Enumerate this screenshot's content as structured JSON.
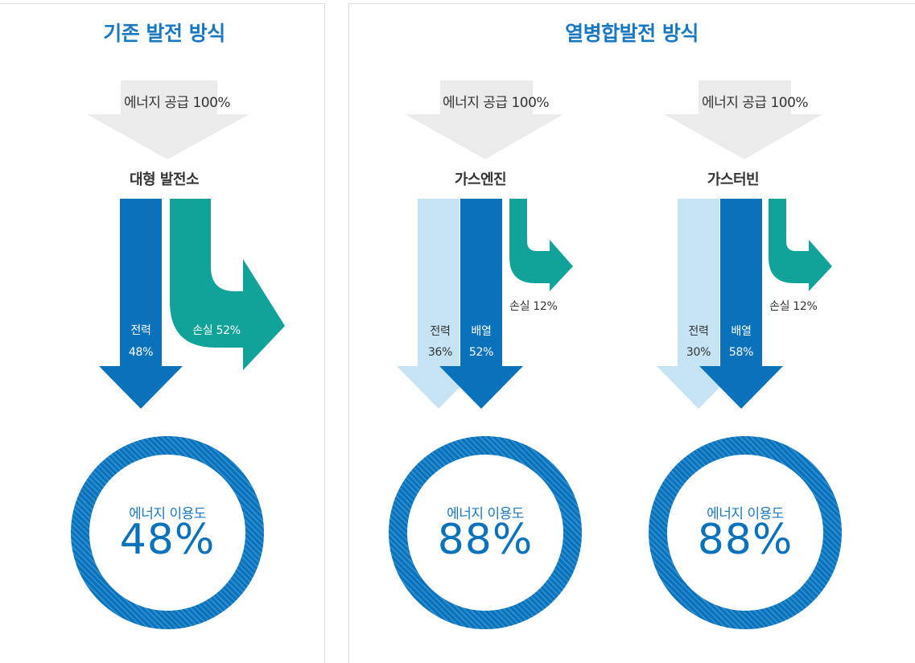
{
  "colors": {
    "title": "#1a78c2",
    "supply_arrow": "#ebebeb",
    "electric_dark": "#0a72bb",
    "electric_light": "#c5e3f3",
    "loss_teal": "#11a39a",
    "ring": "#0a72bb"
  },
  "panels": {
    "conventional": {
      "title": "기존 발전 방식",
      "supply": "에너지 공급 100%",
      "plant": "대형 발전소",
      "electric_name": "전력",
      "electric_pct": "48%",
      "electric_value": 48,
      "loss_label": "손실 52%",
      "loss_value": 52,
      "util_label": "에너지 이용도",
      "util_value": "48%"
    },
    "chp": {
      "title": "열병합발전 방식",
      "engine": {
        "supply": "에너지 공급 100%",
        "plant": "가스엔진",
        "electric_name": "전력",
        "electric_pct": "36%",
        "electric_value": 36,
        "heat_name": "배열",
        "heat_pct": "52%",
        "heat_value": 52,
        "loss_label": "손실 12%",
        "loss_value": 12,
        "util_label": "에너지 이용도",
        "util_value": "88%"
      },
      "turbine": {
        "supply": "에너지 공급 100%",
        "plant": "가스터빈",
        "electric_name": "전력",
        "electric_pct": "30%",
        "electric_value": 30,
        "heat_name": "배열",
        "heat_pct": "58%",
        "heat_value": 58,
        "loss_label": "손실 12%",
        "loss_value": 12,
        "util_label": "에너지 이용도",
        "util_value": "88%"
      }
    }
  }
}
